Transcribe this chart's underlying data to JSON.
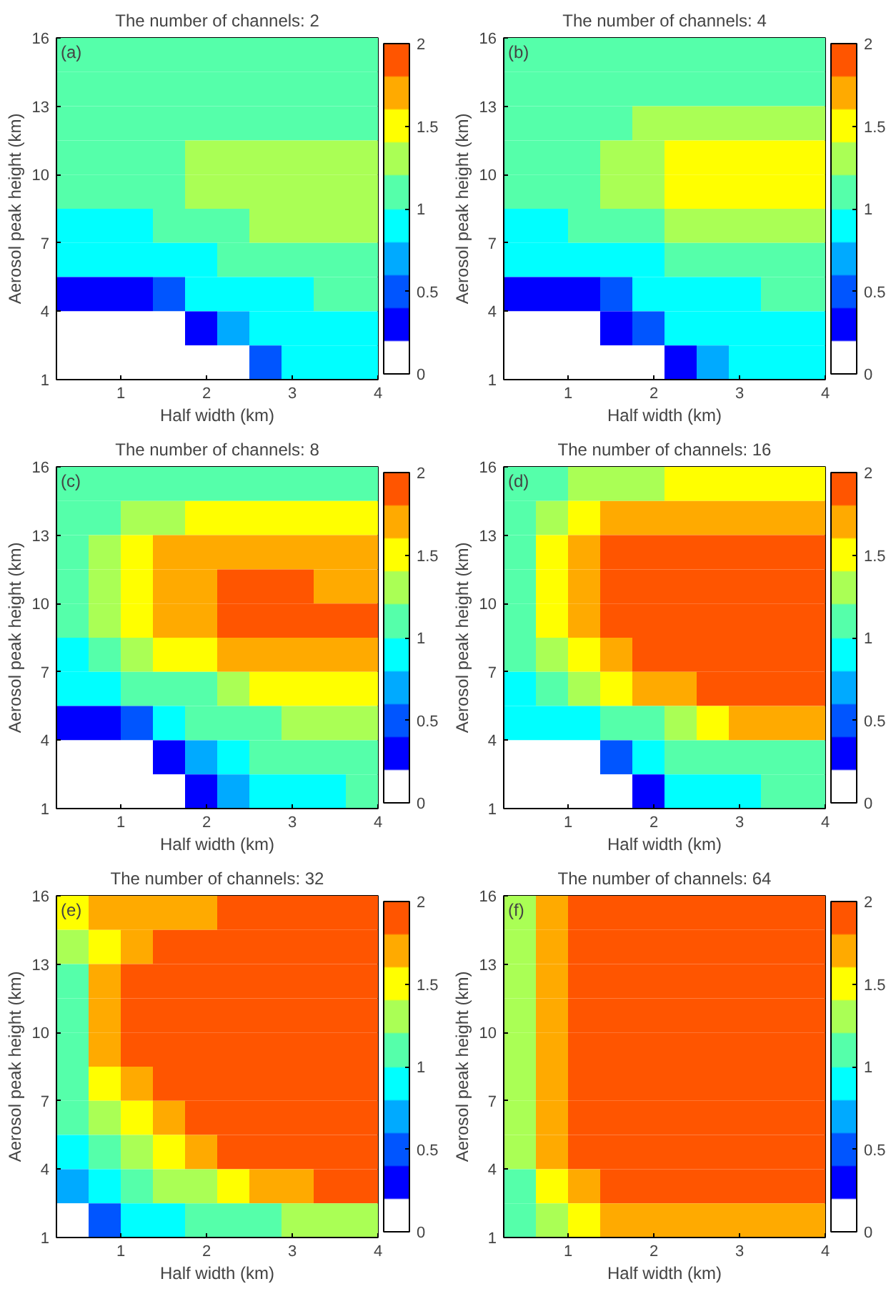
{
  "chart_data": [
    {
      "type": "heatmap",
      "title": "The number of channels: 2",
      "annotations": [
        "(a)"
      ],
      "xlabel": "Half width (km)",
      "ylabel": "Aerosol peak height (km)",
      "xlim": [
        0.25,
        4
      ],
      "xticks": [
        1,
        2,
        3,
        4
      ],
      "ylim": [
        1,
        16
      ],
      "yticks": [
        1,
        4,
        7,
        10,
        13,
        16
      ],
      "clim": [
        0,
        2
      ],
      "cticks": [
        0,
        0.5,
        1,
        1.5,
        2
      ],
      "cells": [
        [
          1.1,
          1.1,
          1.1,
          1.1,
          1.1,
          1.1,
          1.1,
          1.1,
          1.1,
          1.1
        ],
        [
          1.1,
          1.1,
          1.1,
          1.1,
          1.1,
          1.1,
          1.1,
          1.1,
          1.1,
          1.1
        ],
        [
          1.1,
          1.1,
          1.1,
          1.1,
          1.1,
          1.1,
          1.1,
          1.1,
          1.1,
          1.1
        ],
        [
          1.1,
          1.1,
          1.1,
          1.1,
          1.3,
          1.3,
          1.3,
          1.3,
          1.3,
          1.3
        ],
        [
          1.1,
          1.1,
          1.1,
          1.1,
          1.3,
          1.3,
          1.3,
          1.3,
          1.3,
          1.3
        ],
        [
          0.9,
          0.9,
          0.9,
          1.1,
          1.1,
          1.1,
          1.3,
          1.3,
          1.3,
          1.3
        ],
        [
          0.9,
          0.9,
          0.9,
          0.9,
          0.9,
          1.1,
          1.1,
          1.1,
          1.1,
          1.1
        ],
        [
          0.3,
          0.3,
          0.3,
          0.5,
          0.9,
          0.9,
          0.9,
          0.9,
          1.1,
          1.1
        ],
        [
          0.1,
          0.1,
          0.1,
          0.1,
          0.3,
          0.7,
          0.9,
          0.9,
          0.9,
          0.9
        ],
        [
          0.1,
          0.1,
          0.1,
          0.1,
          0.1,
          0.1,
          0.5,
          0.9,
          0.9,
          0.9
        ]
      ]
    },
    {
      "type": "heatmap",
      "title": "The number of channels: 4",
      "annotations": [
        "(b)"
      ],
      "xlabel": "Half width (km)",
      "ylabel": "Aerosol peak height (km)",
      "xlim": [
        0.25,
        4
      ],
      "xticks": [
        1,
        2,
        3,
        4
      ],
      "ylim": [
        1,
        16
      ],
      "yticks": [
        1,
        4,
        7,
        10,
        13,
        16
      ],
      "clim": [
        0,
        2
      ],
      "cticks": [
        0,
        0.5,
        1,
        1.5,
        2
      ],
      "cells": [
        [
          1.1,
          1.1,
          1.1,
          1.1,
          1.1,
          1.1,
          1.1,
          1.1,
          1.1,
          1.1
        ],
        [
          1.1,
          1.1,
          1.1,
          1.1,
          1.1,
          1.1,
          1.1,
          1.1,
          1.1,
          1.1
        ],
        [
          1.1,
          1.1,
          1.1,
          1.1,
          1.3,
          1.3,
          1.3,
          1.3,
          1.3,
          1.3
        ],
        [
          1.1,
          1.1,
          1.1,
          1.3,
          1.3,
          1.5,
          1.5,
          1.5,
          1.5,
          1.5
        ],
        [
          1.1,
          1.1,
          1.1,
          1.3,
          1.3,
          1.5,
          1.5,
          1.5,
          1.5,
          1.5
        ],
        [
          0.9,
          0.9,
          1.1,
          1.1,
          1.1,
          1.3,
          1.3,
          1.3,
          1.3,
          1.3
        ],
        [
          0.9,
          0.9,
          0.9,
          0.9,
          0.9,
          1.1,
          1.1,
          1.1,
          1.1,
          1.1
        ],
        [
          0.3,
          0.3,
          0.3,
          0.5,
          0.9,
          0.9,
          0.9,
          0.9,
          1.1,
          1.1
        ],
        [
          0.1,
          0.1,
          0.1,
          0.3,
          0.5,
          0.9,
          0.9,
          0.9,
          0.9,
          0.9
        ],
        [
          0.1,
          0.1,
          0.1,
          0.1,
          0.1,
          0.3,
          0.7,
          0.9,
          0.9,
          0.9
        ]
      ]
    },
    {
      "type": "heatmap",
      "title": "The number of channels: 8",
      "annotations": [
        "(c)"
      ],
      "xlabel": "Half width (km)",
      "ylabel": "Aerosol peak height (km)",
      "xlim": [
        0.25,
        4
      ],
      "xticks": [
        1,
        2,
        3,
        4
      ],
      "ylim": [
        1,
        16
      ],
      "yticks": [
        1,
        4,
        7,
        10,
        13,
        16
      ],
      "clim": [
        0,
        2
      ],
      "cticks": [
        0,
        0.5,
        1,
        1.5,
        2
      ],
      "cells": [
        [
          1.1,
          1.1,
          1.1,
          1.1,
          1.1,
          1.1,
          1.1,
          1.1,
          1.1,
          1.1
        ],
        [
          1.1,
          1.1,
          1.3,
          1.3,
          1.5,
          1.5,
          1.5,
          1.5,
          1.5,
          1.5
        ],
        [
          1.1,
          1.3,
          1.5,
          1.7,
          1.7,
          1.7,
          1.7,
          1.7,
          1.7,
          1.7
        ],
        [
          1.1,
          1.3,
          1.5,
          1.7,
          1.7,
          1.9,
          1.9,
          1.9,
          1.7,
          1.7
        ],
        [
          1.1,
          1.3,
          1.5,
          1.7,
          1.7,
          1.9,
          1.9,
          1.9,
          1.9,
          1.9
        ],
        [
          0.9,
          1.1,
          1.3,
          1.5,
          1.5,
          1.7,
          1.7,
          1.7,
          1.7,
          1.7
        ],
        [
          0.9,
          0.9,
          1.1,
          1.1,
          1.1,
          1.3,
          1.5,
          1.5,
          1.5,
          1.5
        ],
        [
          0.3,
          0.3,
          0.5,
          0.9,
          1.1,
          1.1,
          1.1,
          1.3,
          1.3,
          1.3
        ],
        [
          0.1,
          0.1,
          0.1,
          0.3,
          0.7,
          0.9,
          1.1,
          1.1,
          1.1,
          1.1
        ],
        [
          0.1,
          0.1,
          0.1,
          0.1,
          0.3,
          0.7,
          0.9,
          0.9,
          0.9,
          1.1
        ]
      ]
    },
    {
      "type": "heatmap",
      "title": "The number of channels: 16",
      "annotations": [
        "(d)"
      ],
      "xlabel": "Half width (km)",
      "ylabel": "Aerosol peak height (km)",
      "xlim": [
        0.25,
        4
      ],
      "xticks": [
        1,
        2,
        3,
        4
      ],
      "ylim": [
        1,
        16
      ],
      "yticks": [
        1,
        4,
        7,
        10,
        13,
        16
      ],
      "clim": [
        0,
        2
      ],
      "cticks": [
        0,
        0.5,
        1,
        1.5,
        2
      ],
      "cells": [
        [
          1.1,
          1.1,
          1.3,
          1.3,
          1.3,
          1.5,
          1.5,
          1.5,
          1.5,
          1.5
        ],
        [
          1.1,
          1.3,
          1.5,
          1.7,
          1.7,
          1.7,
          1.7,
          1.7,
          1.7,
          1.7
        ],
        [
          1.1,
          1.5,
          1.7,
          1.9,
          1.9,
          1.9,
          1.9,
          1.9,
          1.9,
          1.9
        ],
        [
          1.1,
          1.5,
          1.7,
          1.9,
          1.9,
          1.9,
          1.9,
          1.9,
          1.9,
          1.9
        ],
        [
          1.1,
          1.5,
          1.7,
          1.9,
          1.9,
          1.9,
          1.9,
          1.9,
          1.9,
          1.9
        ],
        [
          1.1,
          1.3,
          1.5,
          1.7,
          1.9,
          1.9,
          1.9,
          1.9,
          1.9,
          1.9
        ],
        [
          0.9,
          1.1,
          1.3,
          1.5,
          1.7,
          1.7,
          1.9,
          1.9,
          1.9,
          1.9
        ],
        [
          0.9,
          0.9,
          0.9,
          1.1,
          1.1,
          1.3,
          1.5,
          1.7,
          1.7,
          1.7
        ],
        [
          0.1,
          0.1,
          0.1,
          0.5,
          0.9,
          1.1,
          1.1,
          1.1,
          1.1,
          1.1
        ],
        [
          0.1,
          0.1,
          0.1,
          0.1,
          0.3,
          0.9,
          0.9,
          0.9,
          1.1,
          1.1
        ]
      ]
    },
    {
      "type": "heatmap",
      "title": "The number of channels: 32",
      "annotations": [
        "(e)"
      ],
      "xlabel": "Half width (km)",
      "ylabel": "Aerosol peak height (km)",
      "xlim": [
        0.25,
        4
      ],
      "xticks": [
        1,
        2,
        3,
        4
      ],
      "ylim": [
        1,
        16
      ],
      "yticks": [
        1,
        4,
        7,
        10,
        13,
        16
      ],
      "clim": [
        0,
        2
      ],
      "cticks": [
        0,
        0.5,
        1,
        1.5,
        2
      ],
      "cells": [
        [
          1.5,
          1.7,
          1.7,
          1.7,
          1.7,
          1.9,
          1.9,
          1.9,
          1.9,
          1.9
        ],
        [
          1.3,
          1.5,
          1.7,
          1.9,
          1.9,
          1.9,
          1.9,
          1.9,
          1.9,
          1.9
        ],
        [
          1.1,
          1.7,
          1.9,
          1.9,
          1.9,
          1.9,
          1.9,
          1.9,
          1.9,
          1.9
        ],
        [
          1.1,
          1.7,
          1.9,
          1.9,
          1.9,
          1.9,
          1.9,
          1.9,
          1.9,
          1.9
        ],
        [
          1.1,
          1.7,
          1.9,
          1.9,
          1.9,
          1.9,
          1.9,
          1.9,
          1.9,
          1.9
        ],
        [
          1.1,
          1.5,
          1.7,
          1.9,
          1.9,
          1.9,
          1.9,
          1.9,
          1.9,
          1.9
        ],
        [
          1.1,
          1.3,
          1.5,
          1.7,
          1.9,
          1.9,
          1.9,
          1.9,
          1.9,
          1.9
        ],
        [
          0.9,
          1.1,
          1.3,
          1.5,
          1.7,
          1.9,
          1.9,
          1.9,
          1.9,
          1.9
        ],
        [
          0.7,
          0.9,
          1.1,
          1.3,
          1.3,
          1.5,
          1.7,
          1.7,
          1.9,
          1.9
        ],
        [
          0.1,
          0.5,
          0.9,
          0.9,
          1.1,
          1.1,
          1.1,
          1.3,
          1.3,
          1.3
        ]
      ]
    },
    {
      "type": "heatmap",
      "title": "The number of channels: 64",
      "annotations": [
        "(f)"
      ],
      "xlabel": "Half width (km)",
      "ylabel": "Aerosol peak height (km)",
      "xlim": [
        0.25,
        4
      ],
      "xticks": [
        1,
        2,
        3,
        4
      ],
      "ylim": [
        1,
        16
      ],
      "yticks": [
        1,
        4,
        7,
        10,
        13,
        16
      ],
      "clim": [
        0,
        2
      ],
      "cticks": [
        0,
        0.5,
        1,
        1.5,
        2
      ],
      "cells": [
        [
          1.3,
          1.7,
          1.9,
          1.9,
          1.9,
          1.9,
          1.9,
          1.9,
          1.9,
          1.9
        ],
        [
          1.3,
          1.7,
          1.9,
          1.9,
          1.9,
          1.9,
          1.9,
          1.9,
          1.9,
          1.9
        ],
        [
          1.3,
          1.7,
          1.9,
          1.9,
          1.9,
          1.9,
          1.9,
          1.9,
          1.9,
          1.9
        ],
        [
          1.3,
          1.7,
          1.9,
          1.9,
          1.9,
          1.9,
          1.9,
          1.9,
          1.9,
          1.9
        ],
        [
          1.3,
          1.7,
          1.9,
          1.9,
          1.9,
          1.9,
          1.9,
          1.9,
          1.9,
          1.9
        ],
        [
          1.3,
          1.7,
          1.9,
          1.9,
          1.9,
          1.9,
          1.9,
          1.9,
          1.9,
          1.9
        ],
        [
          1.3,
          1.7,
          1.9,
          1.9,
          1.9,
          1.9,
          1.9,
          1.9,
          1.9,
          1.9
        ],
        [
          1.3,
          1.7,
          1.9,
          1.9,
          1.9,
          1.9,
          1.9,
          1.9,
          1.9,
          1.9
        ],
        [
          1.1,
          1.5,
          1.7,
          1.9,
          1.9,
          1.9,
          1.9,
          1.9,
          1.9,
          1.9
        ],
        [
          1.1,
          1.3,
          1.5,
          1.7,
          1.7,
          1.7,
          1.7,
          1.7,
          1.7,
          1.7
        ]
      ]
    }
  ]
}
